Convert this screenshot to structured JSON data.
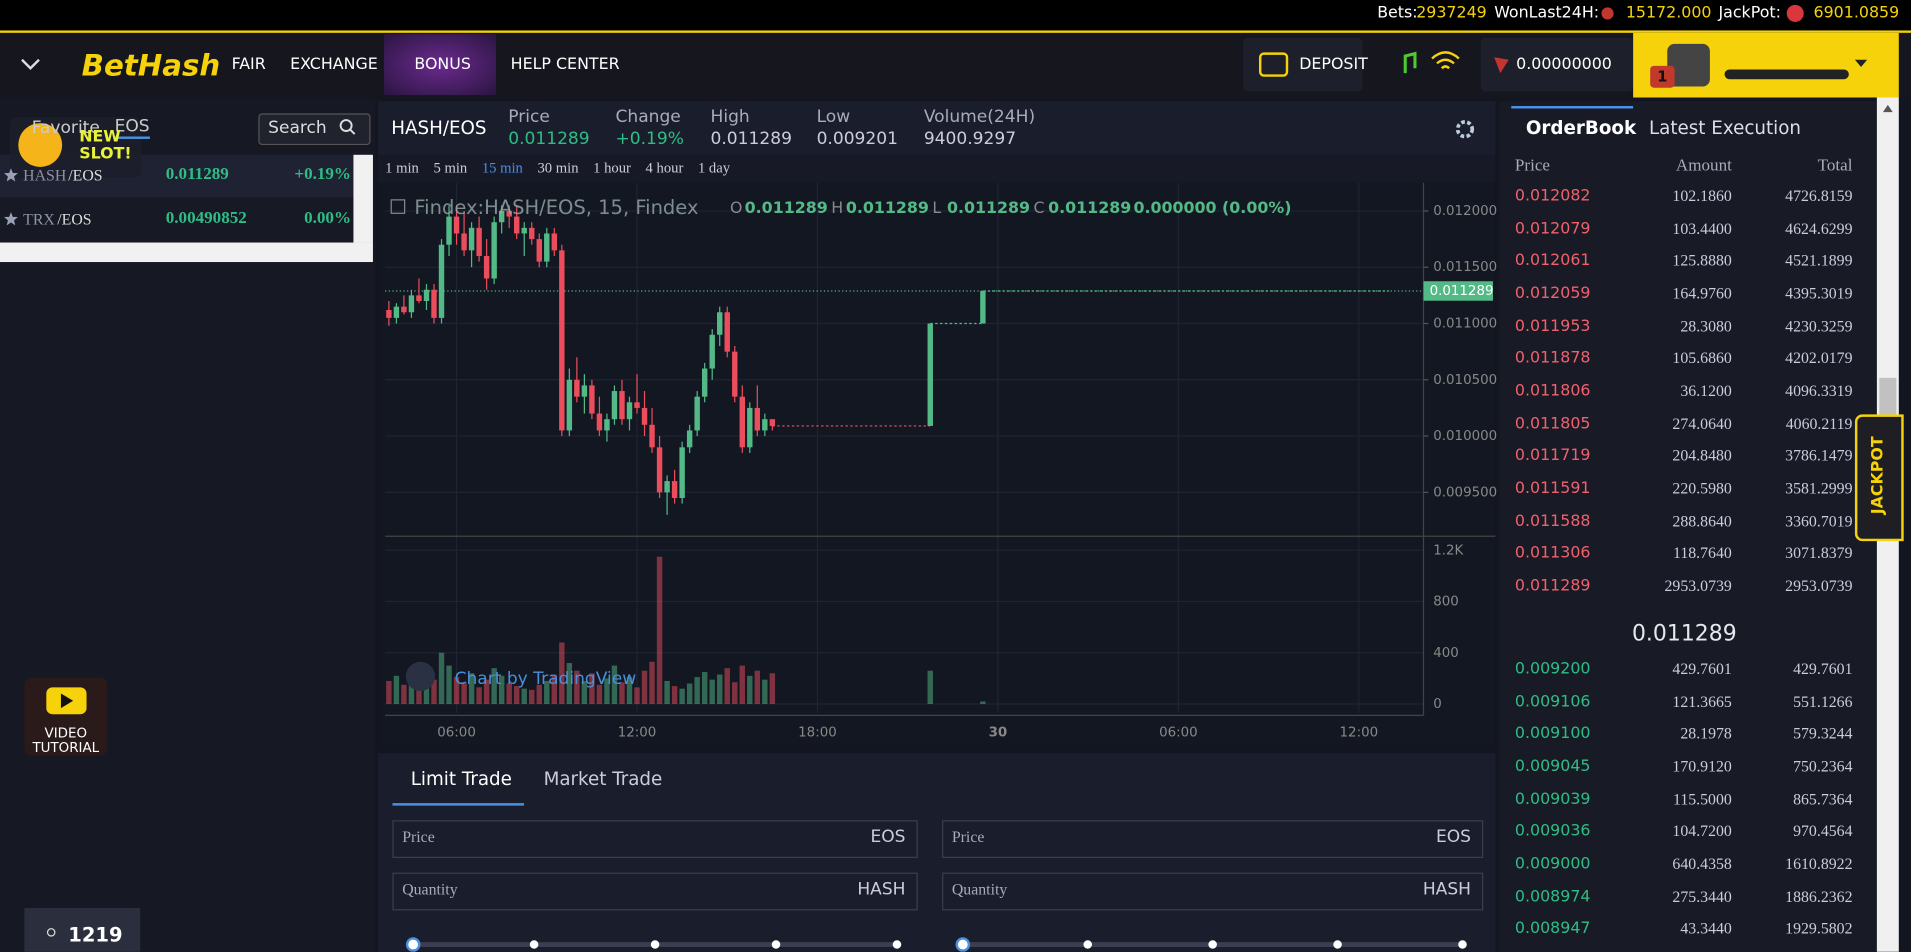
{
  "top_bar": {
    "bets_label": "Bets:",
    "bets": "2937249",
    "won_label": "WonLast24H:",
    "won": "15172.000",
    "jackpot_label": "JackPot:",
    "jackpot": "6901.0859"
  },
  "nav": {
    "logo": "BetHash",
    "items": [
      "FAIR",
      "EXCHANGE",
      "BONUS",
      "HELP CENTER"
    ],
    "deposit": "DEPOSIT",
    "balance": "0.00000000",
    "notifications": "1"
  },
  "markets": {
    "tabs": [
      "Favorite",
      "EOS"
    ],
    "search": "Search",
    "promo": "NEW SLOT!",
    "rows": [
      {
        "base": "HASH",
        "quote": "/EOS",
        "price": "0.011289",
        "change": "+0.19%"
      },
      {
        "base": "TRX",
        "quote": "/EOS",
        "price": "0.00490852",
        "change": "0.00%"
      }
    ],
    "video": "VIDEO TUTORIAL",
    "online": "1219"
  },
  "ticker": {
    "pair": "HASH/EOS",
    "fields": [
      {
        "label": "Price",
        "value": "0.011289"
      },
      {
        "label": "Change",
        "value": "+0.19%"
      },
      {
        "label": "High",
        "value": "0.011289"
      },
      {
        "label": "Low",
        "value": "0.009201"
      },
      {
        "label": "Volume(24H)",
        "value": "9400.9297"
      }
    ]
  },
  "intervals": [
    "1 min",
    "5 min",
    "15 min",
    "30 min",
    "1 hour",
    "4 hour",
    "1 day"
  ],
  "active_interval": 2,
  "chart_data": {
    "type": "candlestick",
    "legend": {
      "title": "Findex:HASH/EOS, 15, Findex",
      "o_label": "O",
      "o": "0.011289",
      "h_label": "H",
      "h": "0.011289",
      "l_label": "L",
      "l": "0.011289",
      "c_label": "C",
      "c": "0.011289",
      "change": "0.000000 (0.00%)"
    },
    "watermark": "Chart by TradingView",
    "up_color": "#53b987",
    "down_color": "#eb4d5c",
    "last": 0.011289,
    "xlim": [
      -0.5,
      137.6
    ],
    "xticks": [
      {
        "value": 9,
        "label": "06:00"
      },
      {
        "value": 33,
        "label": "12:00"
      },
      {
        "value": 57,
        "label": "18:00"
      },
      {
        "value": 81,
        "label": "30"
      },
      {
        "value": 105,
        "label": "06:00"
      },
      {
        "value": 129,
        "label": "12:00"
      }
    ],
    "ylim": [
      0.00911,
      0.01225
    ],
    "yticks": [
      {
        "value": 0.0095,
        "label": "0.009500"
      },
      {
        "value": 0.01,
        "label": "0.010000"
      },
      {
        "value": 0.0105,
        "label": "0.010500"
      },
      {
        "value": 0.011,
        "label": "0.011000"
      },
      {
        "value": 0.0115,
        "label": "0.011500"
      },
      {
        "value": 0.012,
        "label": "0.012000"
      }
    ],
    "vol_ylim": [
      -70,
      1300
    ],
    "vol_ticks": [
      0,
      400,
      800,
      {
        "value": 1200,
        "label": "1.2K"
      }
    ],
    "grid": true,
    "candles": [
      {
        "x": 0,
        "o": 0.01112,
        "h": 0.0112,
        "l": 0.01098,
        "c": 0.01105,
        "v": 180
      },
      {
        "x": 1,
        "o": 0.01105,
        "h": 0.01118,
        "l": 0.011,
        "c": 0.01115,
        "v": 220
      },
      {
        "x": 2,
        "o": 0.01115,
        "h": 0.01125,
        "l": 0.01108,
        "c": 0.0111,
        "v": 150
      },
      {
        "x": 3,
        "o": 0.0111,
        "h": 0.0113,
        "l": 0.01105,
        "c": 0.01125,
        "v": 200
      },
      {
        "x": 4,
        "o": 0.01125,
        "h": 0.0114,
        "l": 0.01118,
        "c": 0.0112,
        "v": 160
      },
      {
        "x": 5,
        "o": 0.0112,
        "h": 0.01135,
        "l": 0.01112,
        "c": 0.0113,
        "v": 260
      },
      {
        "x": 6,
        "o": 0.0113,
        "h": 0.01135,
        "l": 0.011,
        "c": 0.01105,
        "v": 190
      },
      {
        "x": 7,
        "o": 0.01105,
        "h": 0.01175,
        "l": 0.011,
        "c": 0.0117,
        "v": 400
      },
      {
        "x": 8,
        "o": 0.0117,
        "h": 0.01205,
        "l": 0.0116,
        "c": 0.01195,
        "v": 300
      },
      {
        "x": 9,
        "o": 0.01195,
        "h": 0.01205,
        "l": 0.0117,
        "c": 0.0118,
        "v": 210
      },
      {
        "x": 10,
        "o": 0.0118,
        "h": 0.012,
        "l": 0.0116,
        "c": 0.01165,
        "v": 170
      },
      {
        "x": 11,
        "o": 0.01165,
        "h": 0.0119,
        "l": 0.0115,
        "c": 0.01185,
        "v": 240
      },
      {
        "x": 12,
        "o": 0.01185,
        "h": 0.01195,
        "l": 0.01155,
        "c": 0.0116,
        "v": 130
      },
      {
        "x": 13,
        "o": 0.0116,
        "h": 0.01175,
        "l": 0.0113,
        "c": 0.0114,
        "v": 190
      },
      {
        "x": 14,
        "o": 0.0114,
        "h": 0.01195,
        "l": 0.01135,
        "c": 0.0119,
        "v": 280
      },
      {
        "x": 15,
        "o": 0.0119,
        "h": 0.01205,
        "l": 0.0118,
        "c": 0.012,
        "v": 220
      },
      {
        "x": 16,
        "o": 0.012,
        "h": 0.01205,
        "l": 0.01185,
        "c": 0.01195,
        "v": 160
      },
      {
        "x": 17,
        "o": 0.01195,
        "h": 0.01205,
        "l": 0.01175,
        "c": 0.0118,
        "v": 140
      },
      {
        "x": 18,
        "o": 0.0118,
        "h": 0.0119,
        "l": 0.0116,
        "c": 0.01185,
        "v": 120
      },
      {
        "x": 19,
        "o": 0.01185,
        "h": 0.0119,
        "l": 0.0117,
        "c": 0.01175,
        "v": 110
      },
      {
        "x": 20,
        "o": 0.01175,
        "h": 0.0118,
        "l": 0.0115,
        "c": 0.01155,
        "v": 150
      },
      {
        "x": 21,
        "o": 0.01155,
        "h": 0.01185,
        "l": 0.0115,
        "c": 0.0118,
        "v": 180
      },
      {
        "x": 22,
        "o": 0.0118,
        "h": 0.01185,
        "l": 0.0116,
        "c": 0.01165,
        "v": 230
      },
      {
        "x": 23,
        "o": 0.01165,
        "h": 0.0117,
        "l": 0.01,
        "c": 0.01005,
        "v": 480
      },
      {
        "x": 24,
        "o": 0.01005,
        "h": 0.0106,
        "l": 0.01,
        "c": 0.0105,
        "v": 320
      },
      {
        "x": 25,
        "o": 0.0105,
        "h": 0.0107,
        "l": 0.0103,
        "c": 0.01035,
        "v": 260
      },
      {
        "x": 26,
        "o": 0.01035,
        "h": 0.01055,
        "l": 0.0102,
        "c": 0.01045,
        "v": 180
      },
      {
        "x": 27,
        "o": 0.01045,
        "h": 0.0105,
        "l": 0.01015,
        "c": 0.0102,
        "v": 240
      },
      {
        "x": 28,
        "o": 0.0102,
        "h": 0.01035,
        "l": 0.01,
        "c": 0.01005,
        "v": 150
      },
      {
        "x": 29,
        "o": 0.01005,
        "h": 0.0102,
        "l": 0.00995,
        "c": 0.01015,
        "v": 200
      },
      {
        "x": 30,
        "o": 0.01015,
        "h": 0.01045,
        "l": 0.0101,
        "c": 0.0104,
        "v": 300
      },
      {
        "x": 31,
        "o": 0.0104,
        "h": 0.0105,
        "l": 0.0101,
        "c": 0.01015,
        "v": 170
      },
      {
        "x": 32,
        "o": 0.01015,
        "h": 0.01035,
        "l": 0.01005,
        "c": 0.0103,
        "v": 210
      },
      {
        "x": 33,
        "o": 0.0103,
        "h": 0.01055,
        "l": 0.0102,
        "c": 0.01025,
        "v": 130
      },
      {
        "x": 34,
        "o": 0.01025,
        "h": 0.0104,
        "l": 0.01,
        "c": 0.0101,
        "v": 260
      },
      {
        "x": 35,
        "o": 0.0101,
        "h": 0.01025,
        "l": 0.00985,
        "c": 0.0099,
        "v": 330
      },
      {
        "x": 36,
        "o": 0.0099,
        "h": 0.01,
        "l": 0.00945,
        "c": 0.0095,
        "v": 1150
      },
      {
        "x": 37,
        "o": 0.0095,
        "h": 0.00965,
        "l": 0.0093,
        "c": 0.0096,
        "v": 180
      },
      {
        "x": 38,
        "o": 0.0096,
        "h": 0.0097,
        "l": 0.0094,
        "c": 0.00945,
        "v": 140
      },
      {
        "x": 39,
        "o": 0.00945,
        "h": 0.00995,
        "l": 0.0094,
        "c": 0.0099,
        "v": 120
      },
      {
        "x": 40,
        "o": 0.0099,
        "h": 0.0101,
        "l": 0.00985,
        "c": 0.01005,
        "v": 160
      },
      {
        "x": 41,
        "o": 0.01005,
        "h": 0.0104,
        "l": 0.01,
        "c": 0.01035,
        "v": 210
      },
      {
        "x": 42,
        "o": 0.01035,
        "h": 0.01065,
        "l": 0.0103,
        "c": 0.0106,
        "v": 250
      },
      {
        "x": 43,
        "o": 0.0106,
        "h": 0.01095,
        "l": 0.0105,
        "c": 0.0109,
        "v": 190
      },
      {
        "x": 44,
        "o": 0.0109,
        "h": 0.01115,
        "l": 0.0108,
        "c": 0.0111,
        "v": 230
      },
      {
        "x": 45,
        "o": 0.0111,
        "h": 0.01115,
        "l": 0.0107,
        "c": 0.01075,
        "v": 280
      },
      {
        "x": 46,
        "o": 0.01075,
        "h": 0.0108,
        "l": 0.0103,
        "c": 0.01035,
        "v": 170
      },
      {
        "x": 47,
        "o": 0.01035,
        "h": 0.01045,
        "l": 0.00985,
        "c": 0.0099,
        "v": 300
      },
      {
        "x": 48,
        "o": 0.0099,
        "h": 0.0103,
        "l": 0.00985,
        "c": 0.01025,
        "v": 220
      },
      {
        "x": 49,
        "o": 0.01025,
        "h": 0.01045,
        "l": 0.01,
        "c": 0.01005,
        "v": 260
      },
      {
        "x": 50,
        "o": 0.01005,
        "h": 0.0102,
        "l": 0.01,
        "c": 0.01015,
        "v": 190
      },
      {
        "x": 51,
        "o": 0.01015,
        "h": 0.01015,
        "l": 0.01005,
        "c": 0.01009,
        "v": 240
      },
      {
        "x": 72,
        "o": 0.01009,
        "h": 0.011,
        "l": 0.01009,
        "c": 0.011,
        "v": 260
      },
      {
        "x": 79,
        "o": 0.011,
        "h": 0.011289,
        "l": 0.011,
        "c": 0.011289,
        "v": 20
      }
    ]
  },
  "trade": {
    "tabs": [
      "Limit Trade",
      "Market Trade"
    ],
    "forms": [
      {
        "price": "Price",
        "price_unit": "EOS",
        "qty": "Quantity",
        "qty_unit": "HASH"
      },
      {
        "price": "Price",
        "price_unit": "EOS",
        "qty": "Quantity",
        "qty_unit": "HASH"
      }
    ]
  },
  "orderbook": {
    "tabs": [
      "OrderBook",
      "Latest Execution"
    ],
    "columns": [
      "Price",
      "Amount",
      "Total"
    ],
    "asks": [
      [
        "0.012082",
        "102.1860",
        "4726.8159"
      ],
      [
        "0.012079",
        "103.4400",
        "4624.6299"
      ],
      [
        "0.012061",
        "125.8880",
        "4521.1899"
      ],
      [
        "0.012059",
        "164.9760",
        "4395.3019"
      ],
      [
        "0.011953",
        "28.3080",
        "4230.3259"
      ],
      [
        "0.011878",
        "105.6860",
        "4202.0179"
      ],
      [
        "0.011806",
        "36.1200",
        "4096.3319"
      ],
      [
        "0.011805",
        "274.0640",
        "4060.2119"
      ],
      [
        "0.011719",
        "204.8480",
        "3786.1479"
      ],
      [
        "0.011591",
        "220.5980",
        "3581.2999"
      ],
      [
        "0.011588",
        "288.8640",
        "3360.7019"
      ],
      [
        "0.011306",
        "118.7640",
        "3071.8379"
      ],
      [
        "0.011289",
        "2953.0739",
        "2953.0739"
      ]
    ],
    "mid": "0.011289",
    "bids": [
      [
        "0.009200",
        "429.7601",
        "429.7601"
      ],
      [
        "0.009106",
        "121.3665",
        "551.1266"
      ],
      [
        "0.009100",
        "28.1978",
        "579.3244"
      ],
      [
        "0.009045",
        "170.9120",
        "750.2364"
      ],
      [
        "0.009039",
        "115.5000",
        "865.7364"
      ],
      [
        "0.009036",
        "104.7200",
        "970.4564"
      ],
      [
        "0.009000",
        "640.4358",
        "1610.8922"
      ],
      [
        "0.008974",
        "275.3440",
        "1886.2362"
      ],
      [
        "0.008947",
        "43.3440",
        "1929.5802"
      ]
    ]
  },
  "jackpot_tab": "JACKPOT"
}
